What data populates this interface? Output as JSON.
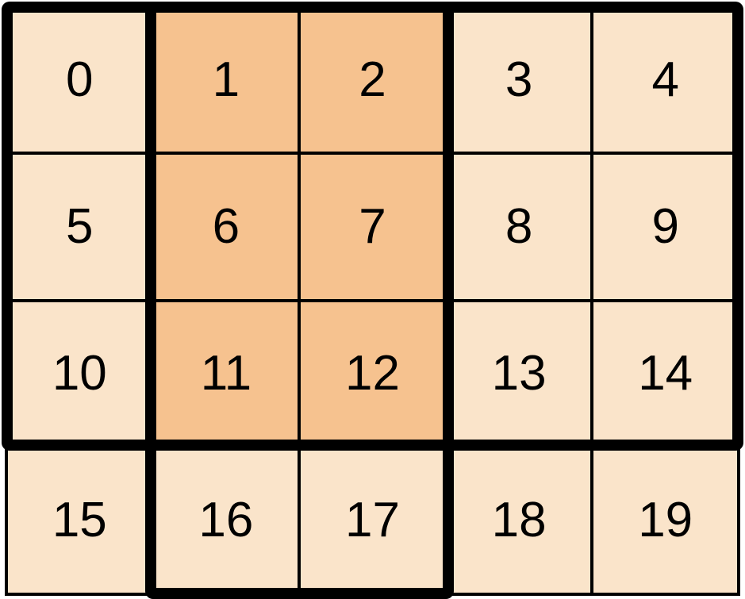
{
  "grid": {
    "columns": 5,
    "rows": 4,
    "cell_values": [
      0,
      1,
      2,
      3,
      4,
      5,
      6,
      7,
      8,
      9,
      10,
      11,
      12,
      13,
      14,
      15,
      16,
      17,
      18,
      19
    ],
    "highlighted_cells": [
      1,
      2,
      6,
      7,
      11,
      12
    ],
    "colors": {
      "background": "#ffffff",
      "cell_fill": "#fae4ca",
      "highlighted_cell_fill": "#f6c28f",
      "grid_line": "#000000"
    }
  },
  "frames": [
    {
      "name": "row-window",
      "rows": [
        0,
        2
      ],
      "cols": [
        0,
        4
      ]
    },
    {
      "name": "column-window",
      "rows": [
        0,
        3
      ],
      "cols": [
        1,
        2
      ]
    }
  ]
}
